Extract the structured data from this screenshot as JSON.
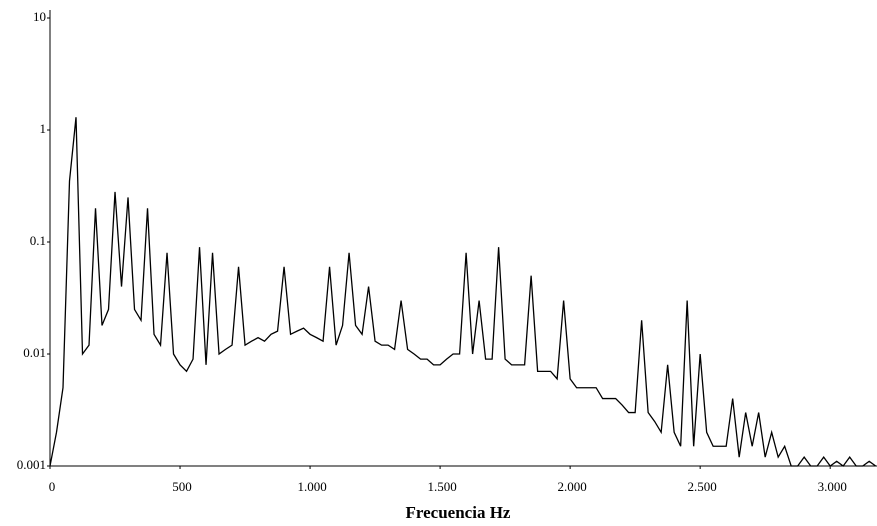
{
  "chart_data": {
    "type": "line",
    "x_label": "Frecuencia  Hz",
    "log_y": true,
    "xlim": [
      0,
      3180
    ],
    "ylim": [
      0.001,
      10
    ],
    "xticks": [
      0,
      500,
      {
        "value": 1000,
        "label": "1.000"
      },
      {
        "value": 1500,
        "label": "1.500"
      },
      {
        "value": 2000,
        "label": "2.000"
      },
      {
        "value": 2500,
        "label": "2.500"
      },
      {
        "value": 3000,
        "label": "3.000"
      }
    ],
    "yticks": [
      0.001,
      0.01,
      0.1,
      1,
      10
    ],
    "color": "#000000",
    "x": [
      0,
      25,
      50,
      75,
      100,
      125,
      150,
      175,
      200,
      225,
      250,
      275,
      300,
      325,
      350,
      375,
      400,
      425,
      450,
      475,
      500,
      525,
      550,
      575,
      600,
      625,
      650,
      675,
      700,
      725,
      750,
      775,
      800,
      825,
      850,
      875,
      900,
      925,
      950,
      975,
      1000,
      1025,
      1050,
      1075,
      1100,
      1125,
      1150,
      1175,
      1200,
      1225,
      1250,
      1275,
      1300,
      1325,
      1350,
      1375,
      1400,
      1425,
      1450,
      1475,
      1500,
      1525,
      1550,
      1575,
      1600,
      1625,
      1650,
      1675,
      1700,
      1725,
      1750,
      1775,
      1800,
      1825,
      1850,
      1875,
      1900,
      1925,
      1950,
      1975,
      2000,
      2025,
      2050,
      2075,
      2100,
      2125,
      2150,
      2175,
      2200,
      2225,
      2250,
      2275,
      2300,
      2325,
      2350,
      2375,
      2400,
      2425,
      2450,
      2475,
      2500,
      2525,
      2550,
      2575,
      2600,
      2625,
      2650,
      2675,
      2700,
      2725,
      2750,
      2775,
      2800,
      2825,
      2850,
      2875,
      2900,
      2925,
      2950,
      2975,
      3000,
      3025,
      3050,
      3075,
      3100,
      3125,
      3150,
      3175
    ],
    "values": [
      0.001,
      0.002,
      0.005,
      0.35,
      1.3,
      0.01,
      0.012,
      0.2,
      0.018,
      0.025,
      0.28,
      0.04,
      0.25,
      0.025,
      0.02,
      0.2,
      0.015,
      0.012,
      0.08,
      0.01,
      0.008,
      0.007,
      0.009,
      0.09,
      0.008,
      0.08,
      0.01,
      0.011,
      0.012,
      0.06,
      0.012,
      0.013,
      0.014,
      0.013,
      0.015,
      0.016,
      0.06,
      0.015,
      0.016,
      0.017,
      0.015,
      0.014,
      0.013,
      0.06,
      0.012,
      0.018,
      0.08,
      0.018,
      0.015,
      0.04,
      0.013,
      0.012,
      0.012,
      0.011,
      0.03,
      0.011,
      0.01,
      0.009,
      0.009,
      0.008,
      0.008,
      0.009,
      0.01,
      0.01,
      0.08,
      0.01,
      0.03,
      0.009,
      0.009,
      0.09,
      0.009,
      0.008,
      0.008,
      0.008,
      0.05,
      0.007,
      0.007,
      0.007,
      0.006,
      0.03,
      0.006,
      0.005,
      0.005,
      0.005,
      0.005,
      0.004,
      0.004,
      0.004,
      0.0035,
      0.003,
      0.003,
      0.02,
      0.003,
      0.0025,
      0.002,
      0.008,
      0.002,
      0.0015,
      0.03,
      0.0015,
      0.01,
      0.002,
      0.0015,
      0.0015,
      0.0015,
      0.004,
      0.0012,
      0.003,
      0.0015,
      0.003,
      0.0012,
      0.002,
      0.0012,
      0.0015,
      0.001,
      0.001,
      0.0012,
      0.001,
      0.001,
      0.0012,
      0.001,
      0.0011,
      0.001,
      0.0012,
      0.001,
      0.001,
      0.0011,
      0.001
    ]
  }
}
